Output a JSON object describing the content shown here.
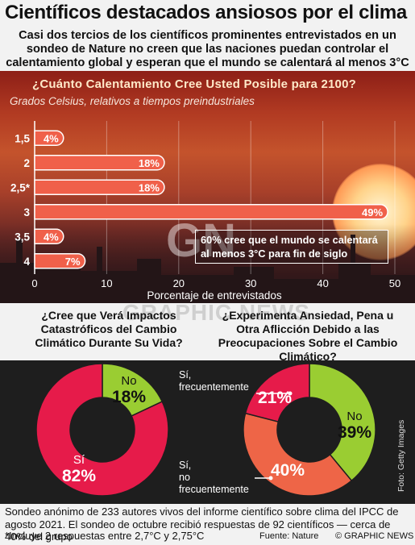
{
  "title": "Científicos destacados ansiosos por el clima",
  "subtitle": "Casi dos tercios de los científicos prominentes entrevistados en un sondeo de Nature no creen que las naciones puedan controlar el calentamiento global y esperan que el mundo se calentará al menos 3°C para fin de siglo",
  "colors": {
    "bar": "#f0604a",
    "crimson": "#e61b4a",
    "green": "#9acd32",
    "salmon": "#ee6547",
    "dark": "#1e1e1e"
  },
  "chart_data": [
    {
      "type": "bar",
      "orientation": "horizontal",
      "title": "¿Cuánto Calentamiento Cree Usted Posible para 2100?",
      "subtitle": "Grados Celsius, relativos a tiempos preindustriales",
      "categories": [
        "1,5",
        "2",
        "2,5*",
        "3",
        "3,5",
        "4"
      ],
      "values": [
        4,
        18,
        18,
        49,
        4,
        7
      ],
      "value_labels": [
        "4%",
        "18%",
        "18%",
        "49%",
        "4%",
        "7%"
      ],
      "xlabel": "Porcentaje de entrevistados",
      "xlim": [
        0,
        50
      ],
      "xticks": [
        0,
        10,
        20,
        30,
        40,
        50
      ],
      "annotation": "60% cree que el mundo se calentará al menos 3°C para fin de siglo"
    },
    {
      "type": "pie",
      "donut": true,
      "title": "¿Cree que Verá Impactos Catastróficos del Cambio Climático Durante Su Vida?",
      "slices": [
        {
          "name": "No",
          "value": 18,
          "label": "18%",
          "color": "#9acd32"
        },
        {
          "name": "Sí",
          "value": 82,
          "label": "82%",
          "color": "#e61b4a"
        }
      ]
    },
    {
      "type": "pie",
      "donut": true,
      "title": "¿Experimenta Ansiedad, Pena u Otra Aflicción Debido a las Preocupaciones Sobre el Cambio Climático?",
      "slices": [
        {
          "name": "No",
          "value": 39,
          "label": "39%",
          "color": "#9acd32"
        },
        {
          "name": "Sí, no frecuentemente",
          "value": 40,
          "label": "40%",
          "color": "#ee6547"
        },
        {
          "name": "Sí, frecuentemente",
          "value": 21,
          "label": "21%",
          "color": "#e61b4a"
        }
      ]
    }
  ],
  "labels": {
    "no": "No",
    "si": "Sí,",
    "si_plain": "Sí",
    "frecuentemente": "frecuentemente",
    "no_freq": "no",
    "credit": "Foto: Getty Images"
  },
  "footer": {
    "note1": "Sondeo anónimo de 233 autores vivos del informe científico sobre clima del IPCC de agosto 2021. El sondeo de octubre recibió respuestas de 92 científicos — cerca de 40% del grupo",
    "note2": "*Incluye 2 respuestas entre 2,7°C y 2,75°C",
    "source": "Fuente: Nature",
    "brand": "© GRAPHIC NEWS"
  },
  "watermark": {
    "logo": "GN",
    "text": "GRAPHIC NEWS"
  }
}
